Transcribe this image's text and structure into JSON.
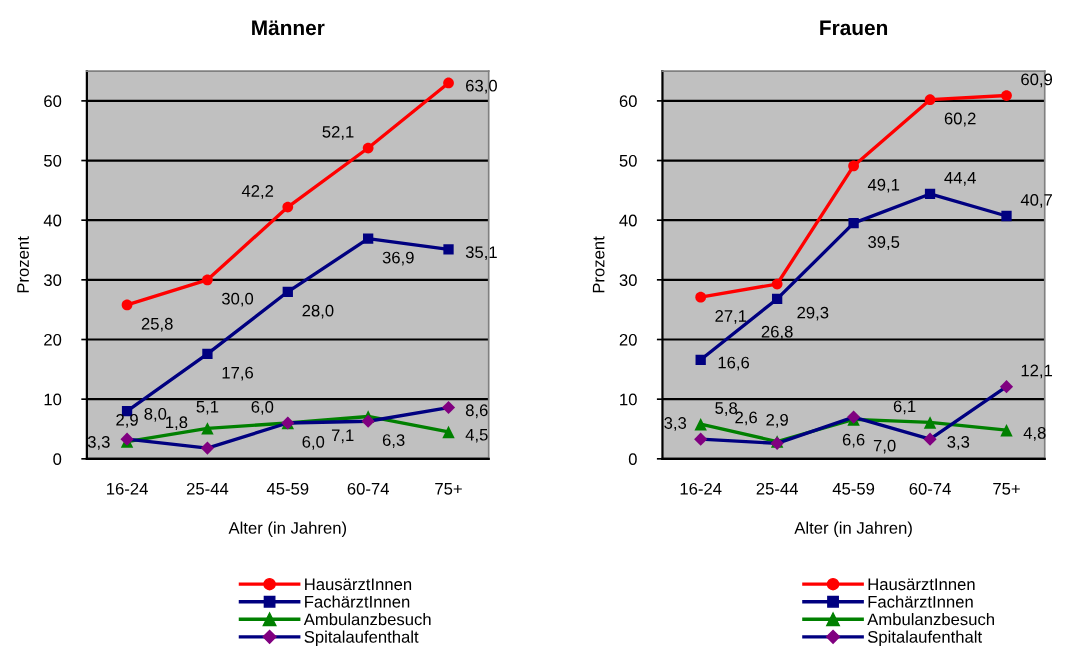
{
  "chart_data": [
    {
      "type": "line",
      "title": "Männer",
      "xlabel": "Alter (in Jahren)",
      "ylabel": "Prozent",
      "categories": [
        "16-24",
        "25-44",
        "45-59",
        "60-74",
        "75+"
      ],
      "ylim": [
        0,
        65
      ],
      "yticks": [
        0,
        10,
        20,
        30,
        40,
        50,
        60
      ],
      "grid": "y",
      "legend": "bottom",
      "line_style": "solid",
      "series": [
        {
          "name": "HausärztInnen",
          "color": "#ff0000",
          "marker": "circle",
          "values": [
            25.8,
            30.0,
            42.2,
            52.1,
            63.0
          ],
          "value_labels": [
            "25,8",
            "30,0",
            "42,2",
            "52,1",
            "63,0"
          ]
        },
        {
          "name": "FachärztInnen",
          "color": "#000080",
          "marker": "square",
          "values": [
            8.0,
            17.6,
            28.0,
            36.9,
            35.1
          ],
          "value_labels": [
            "8,0",
            "17,6",
            "28,0",
            "36,9",
            "35,1"
          ]
        },
        {
          "name": "Ambulanzbesuch",
          "color": "#008000",
          "marker": "triangle",
          "values": [
            2.9,
            5.1,
            6.0,
            7.1,
            4.5
          ],
          "value_labels": [
            "2,9",
            "5,1",
            "6,0",
            "7,1",
            "4,5"
          ]
        },
        {
          "name": "Spitalaufenthalt",
          "color": "#000080",
          "colors": [
            "#800080",
            "#800080",
            "#800080",
            "#800080",
            "#800080"
          ],
          "marker": "diamond",
          "values": [
            3.3,
            1.8,
            6.0,
            6.3,
            8.6
          ],
          "value_labels": [
            "3,3",
            "1,8",
            "6,0",
            "6,3",
            "8,6"
          ]
        }
      ]
    },
    {
      "type": "line",
      "title": "Frauen",
      "xlabel": "Alter (in Jahren)",
      "ylabel": "Prozent",
      "categories": [
        "16-24",
        "25-44",
        "45-59",
        "60-74",
        "75+"
      ],
      "ylim": [
        0,
        65
      ],
      "yticks": [
        0,
        10,
        20,
        30,
        40,
        50,
        60
      ],
      "grid": "y",
      "legend": "bottom",
      "line_style": "solid",
      "series": [
        {
          "name": "HausärztInnen",
          "color": "#ff0000",
          "marker": "circle",
          "values": [
            27.1,
            29.3,
            49.1,
            60.2,
            60.9
          ],
          "value_labels": [
            "27,1",
            "29,3",
            "49,1",
            "60,2",
            "60,9"
          ]
        },
        {
          "name": "FachärztInnen",
          "color": "#000080",
          "marker": "square",
          "values": [
            16.6,
            26.8,
            39.5,
            44.4,
            40.7
          ],
          "value_labels": [
            "16,6",
            "26,8",
            "39,5",
            "44,4",
            "40,7"
          ]
        },
        {
          "name": "Ambulanzbesuch",
          "color": "#008000",
          "marker": "triangle",
          "values": [
            5.8,
            2.9,
            6.6,
            6.1,
            4.8
          ],
          "value_labels": [
            "5,8",
            "2,9",
            "6,6",
            "6,1",
            "4,8"
          ]
        },
        {
          "name": "Spitalaufenthalt",
          "color": "#000080",
          "colors": [
            "#800080",
            "#800080",
            "#800080",
            "#800080",
            "#800080"
          ],
          "marker": "diamond",
          "values": [
            3.3,
            2.6,
            7.0,
            3.3,
            12.1
          ],
          "value_labels": [
            "3,3",
            "2,6",
            "7,0",
            "3,3",
            "12,1"
          ]
        }
      ]
    }
  ]
}
